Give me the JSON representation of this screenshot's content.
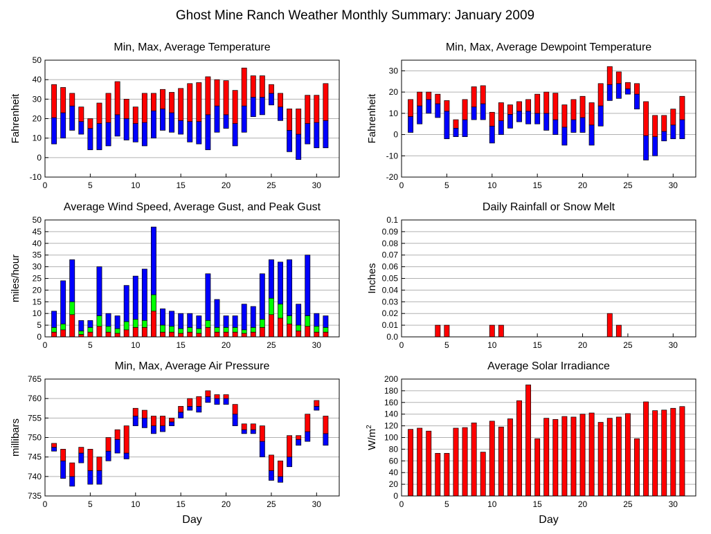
{
  "title": "Ghost Mine Ranch Weather Monthly Summary: January 2009",
  "colors": {
    "red": "#ff0000",
    "blue": "#0000ff",
    "green": "#00ff00",
    "grid": "#b0b0b0",
    "frame": "#000000"
  },
  "chart_data": [
    {
      "id": "temp",
      "type": "bar",
      "title": "Min, Max, Average Temperature",
      "ylabel": "Fahrenheit",
      "xlabel": "",
      "xlim": [
        0,
        32.5
      ],
      "ylim": [
        -10,
        50
      ],
      "yticks": [
        -10,
        0,
        10,
        20,
        30,
        40,
        50
      ],
      "xticks": [
        0,
        5,
        10,
        15,
        20,
        25,
        30
      ],
      "style": "minmaxavg",
      "days": [
        1,
        2,
        3,
        4,
        5,
        6,
        7,
        8,
        9,
        10,
        11,
        12,
        13,
        14,
        15,
        16,
        17,
        18,
        19,
        20,
        21,
        22,
        23,
        24,
        25,
        26,
        27,
        28,
        29,
        30,
        31
      ],
      "min": [
        7,
        10,
        14,
        12,
        4,
        4,
        6,
        11,
        9,
        8,
        6,
        10,
        14,
        13,
        12,
        8,
        7,
        4,
        13,
        15,
        6,
        13,
        21,
        22,
        27,
        19,
        3,
        -1,
        7,
        5,
        5
      ],
      "avg": [
        20.5,
        23,
        26.5,
        18.5,
        15,
        17.5,
        18,
        22,
        20,
        17.5,
        18,
        24,
        25,
        23,
        19,
        18.5,
        18.5,
        22,
        26.5,
        22,
        17.5,
        26.5,
        31,
        31,
        33,
        26,
        14,
        12,
        17.5,
        18,
        19
      ],
      "max": [
        37.5,
        36,
        33,
        26,
        20,
        28,
        33,
        39,
        30,
        26,
        33,
        33,
        35,
        33.5,
        35.5,
        38,
        38.5,
        41.5,
        40,
        39.5,
        34.5,
        46,
        42,
        42,
        37.5,
        33,
        25,
        25,
        32,
        32,
        38
      ]
    },
    {
      "id": "dewpoint",
      "type": "bar",
      "title": "Min, Max, Average Dewpoint Temperature",
      "ylabel": "Fahrenheit",
      "xlabel": "",
      "xlim": [
        0,
        32.5
      ],
      "ylim": [
        -20,
        35
      ],
      "yticks": [
        -20,
        -10,
        0,
        10,
        20,
        30
      ],
      "xticks": [
        0,
        5,
        10,
        15,
        20,
        25,
        30
      ],
      "style": "minmaxavg",
      "days": [
        1,
        2,
        3,
        4,
        5,
        6,
        7,
        8,
        9,
        10,
        11,
        12,
        13,
        14,
        15,
        16,
        17,
        18,
        19,
        20,
        21,
        22,
        23,
        24,
        25,
        26,
        27,
        28,
        29,
        30,
        31
      ],
      "min": [
        1,
        5,
        10,
        8,
        -2,
        -1,
        -1,
        7,
        7,
        -4,
        0,
        3,
        6,
        5,
        5,
        2,
        0,
        -5,
        1,
        1,
        -5,
        4,
        16,
        17,
        19,
        12,
        -12,
        -10,
        -3,
        -2,
        -2
      ],
      "avg": [
        8.5,
        13.5,
        16.5,
        14.5,
        11,
        3,
        7,
        13,
        14.5,
        4,
        6.5,
        9.5,
        11,
        11,
        10,
        10,
        7,
        3.5,
        7,
        8,
        4.5,
        13.5,
        23.5,
        24,
        21.5,
        19,
        -0.5,
        -1,
        1.5,
        4.5,
        7
      ],
      "max": [
        16.5,
        20,
        20,
        19,
        16,
        7,
        16.5,
        22.5,
        23,
        10.5,
        15,
        14,
        15.5,
        16.5,
        19,
        20,
        19.5,
        14,
        16.5,
        18,
        15,
        24,
        32,
        29.5,
        24.5,
        24,
        15.5,
        9,
        9,
        12,
        18
      ]
    },
    {
      "id": "wind",
      "type": "bar",
      "title": "Average Wind Speed, Average Gust, and Peak Gust",
      "ylabel": "miles/hour",
      "xlabel": "",
      "xlim": [
        0,
        32.5
      ],
      "ylim": [
        0,
        50
      ],
      "yticks": [
        0,
        5,
        10,
        15,
        20,
        25,
        30,
        35,
        40,
        45,
        50
      ],
      "xticks": [
        0,
        5,
        10,
        15,
        20,
        25,
        30
      ],
      "style": "wind",
      "days": [
        1,
        2,
        3,
        4,
        5,
        6,
        7,
        8,
        9,
        10,
        11,
        12,
        13,
        14,
        15,
        16,
        17,
        18,
        19,
        20,
        21,
        22,
        23,
        24,
        25,
        26,
        27,
        28,
        29,
        30,
        31
      ],
      "avg_speed": [
        2,
        3,
        9.5,
        1,
        2,
        4.5,
        2,
        1.5,
        3,
        4,
        4,
        11,
        2,
        2,
        1.5,
        2,
        1.5,
        4,
        2,
        2,
        2,
        1.5,
        2,
        4,
        9.5,
        8,
        5.5,
        2.5,
        4.5,
        2,
        2
      ],
      "avg_gust": [
        4,
        5.5,
        15,
        2.5,
        4,
        9,
        4.5,
        3.5,
        6.5,
        7.5,
        7,
        18,
        5,
        4.5,
        3.5,
        4,
        3.5,
        7,
        4,
        4,
        4,
        3,
        4,
        7.5,
        16.5,
        14,
        9,
        5,
        9,
        4.5,
        4
      ],
      "peak_gust": [
        11,
        24,
        33,
        7,
        7,
        30,
        10,
        9,
        22,
        26,
        29,
        47,
        12,
        11,
        10,
        10,
        9,
        27,
        16,
        9,
        9,
        14,
        13,
        27,
        33,
        32,
        33,
        14,
        35,
        10,
        9
      ]
    },
    {
      "id": "rain",
      "type": "bar",
      "title": "Daily Rainfall or Snow Melt",
      "ylabel": "Inches",
      "xlabel": "",
      "xlim": [
        0,
        32.5
      ],
      "ylim": [
        0,
        0.1
      ],
      "yticks": [
        0.0,
        0.01,
        0.02,
        0.03,
        0.04,
        0.05,
        0.06,
        0.07,
        0.08,
        0.09,
        0.1
      ],
      "ytick_labels": [
        "0.0",
        "0.01",
        "0.02",
        "0.03",
        "0.04",
        "0.05",
        "0.06",
        "0.07",
        "0.08",
        "0.09",
        "0.1"
      ],
      "xticks": [
        0,
        5,
        10,
        15,
        20,
        25,
        30
      ],
      "style": "simple",
      "days": [
        4,
        5,
        10,
        11,
        23,
        24
      ],
      "values": [
        0.01,
        0.01,
        0.01,
        0.01,
        0.02,
        0.01
      ]
    },
    {
      "id": "pressure",
      "type": "bar",
      "title": "Min, Max, Average Air Pressure",
      "ylabel": "millibars",
      "xlabel": "Day",
      "xlim": [
        0,
        32.5
      ],
      "ylim": [
        735,
        765
      ],
      "yticks": [
        735,
        740,
        745,
        750,
        755,
        760,
        765
      ],
      "xticks": [
        0,
        5,
        10,
        15,
        20,
        25,
        30
      ],
      "style": "minmaxavg",
      "days": [
        1,
        2,
        3,
        4,
        5,
        6,
        7,
        8,
        9,
        10,
        11,
        12,
        13,
        14,
        15,
        16,
        17,
        18,
        19,
        20,
        21,
        22,
        23,
        24,
        25,
        26,
        27,
        28,
        29,
        30,
        31
      ],
      "min": [
        746.5,
        739.5,
        737.5,
        743.5,
        738,
        738,
        744,
        746,
        744.5,
        753,
        752.5,
        751,
        751.5,
        753,
        755,
        757,
        756.5,
        759,
        758.5,
        758.5,
        753,
        751,
        751,
        745,
        739,
        738.5,
        742.5,
        748,
        749,
        757,
        748
      ],
      "avg": [
        747.5,
        744,
        740,
        746,
        741.5,
        741.5,
        746.5,
        749.5,
        746,
        755.5,
        755,
        753,
        753,
        754,
        756.5,
        758,
        758,
        760.5,
        760,
        760,
        756,
        752,
        752,
        749,
        741.5,
        740,
        745,
        749.5,
        751.5,
        758,
        751
      ],
      "max": [
        748.5,
        747,
        743.5,
        747.5,
        747,
        745,
        750,
        752,
        753,
        757.5,
        757,
        755.5,
        755.5,
        755,
        758,
        760,
        760.5,
        762,
        761,
        761,
        758.5,
        753.5,
        753.5,
        753,
        745.5,
        744,
        750.5,
        750.5,
        756,
        759.5,
        755.5
      ]
    },
    {
      "id": "solar",
      "type": "bar",
      "title": "Average Solar Irradiance",
      "ylabel": "W/m²",
      "ylabel_base": "W/m",
      "ylabel_sup": "2",
      "xlabel": "Day",
      "xlim": [
        0,
        32.5
      ],
      "ylim": [
        0,
        200
      ],
      "yticks": [
        0,
        20,
        40,
        60,
        80,
        100,
        120,
        140,
        160,
        180,
        200
      ],
      "xticks": [
        0,
        5,
        10,
        15,
        20,
        25,
        30
      ],
      "style": "simple",
      "days": [
        1,
        2,
        3,
        4,
        5,
        6,
        7,
        8,
        9,
        10,
        11,
        12,
        13,
        14,
        15,
        16,
        17,
        18,
        19,
        20,
        21,
        22,
        23,
        24,
        25,
        26,
        27,
        28,
        29,
        30,
        31
      ],
      "values": [
        114,
        116,
        111,
        73,
        73,
        116,
        117,
        125,
        75,
        128,
        118,
        132,
        163,
        190,
        98,
        133,
        131,
        136,
        135,
        140,
        142,
        126,
        133,
        135,
        141,
        98,
        161,
        146,
        147,
        150,
        153
      ]
    }
  ]
}
